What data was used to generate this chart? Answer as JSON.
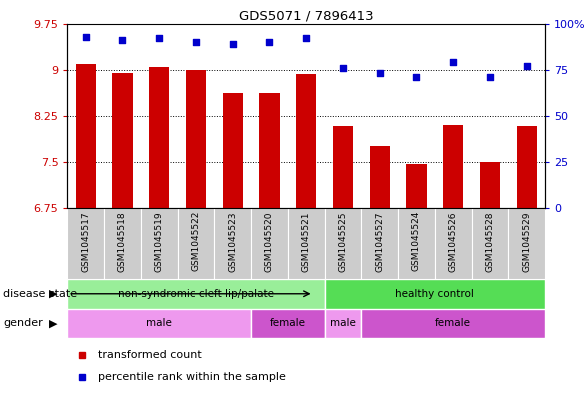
{
  "title": "GDS5071 / 7896413",
  "samples": [
    "GSM1045517",
    "GSM1045518",
    "GSM1045519",
    "GSM1045522",
    "GSM1045523",
    "GSM1045520",
    "GSM1045521",
    "GSM1045525",
    "GSM1045527",
    "GSM1045524",
    "GSM1045526",
    "GSM1045528",
    "GSM1045529"
  ],
  "transformed_count": [
    9.1,
    8.95,
    9.05,
    9.0,
    8.62,
    8.62,
    8.93,
    8.08,
    7.76,
    7.47,
    8.1,
    7.5,
    8.08
  ],
  "percentile_rank": [
    93,
    91,
    92,
    90,
    89,
    90,
    92,
    76,
    73,
    71,
    79,
    71,
    77
  ],
  "ylim_left": [
    6.75,
    9.75
  ],
  "ylim_right": [
    0,
    100
  ],
  "yticks_left": [
    6.75,
    7.5,
    8.25,
    9.0,
    9.75
  ],
  "ytick_labels_left": [
    "6.75",
    "7.5",
    "8.25",
    "9",
    "9.75"
  ],
  "yticks_right": [
    0,
    25,
    50,
    75,
    100
  ],
  "ytick_labels_right": [
    "0",
    "25",
    "50",
    "75",
    "100%"
  ],
  "bar_color": "#cc0000",
  "dot_color": "#0000cc",
  "bar_bottom": 6.75,
  "disease_state_groups": [
    {
      "label": "non-syndromic cleft lip/palate",
      "start": 0,
      "end": 7,
      "color": "#99ee99"
    },
    {
      "label": "healthy control",
      "start": 7,
      "end": 13,
      "color": "#55dd55"
    }
  ],
  "gender_groups": [
    {
      "label": "male",
      "start": 0,
      "end": 5,
      "color": "#ee99ee"
    },
    {
      "label": "female",
      "start": 5,
      "end": 7,
      "color": "#cc55cc"
    },
    {
      "label": "male",
      "start": 7,
      "end": 8,
      "color": "#ee99ee"
    },
    {
      "label": "female",
      "start": 8,
      "end": 13,
      "color": "#cc55cc"
    }
  ],
  "disease_state_label": "disease state",
  "gender_label": "gender",
  "legend_items": [
    {
      "label": "transformed count",
      "color": "#cc0000"
    },
    {
      "label": "percentile rank within the sample",
      "color": "#0000cc"
    }
  ],
  "grid_dotted_values": [
    7.5,
    8.25,
    9.0
  ],
  "xtick_bg_color": "#cccccc",
  "fig_bg_color": "#ffffff"
}
